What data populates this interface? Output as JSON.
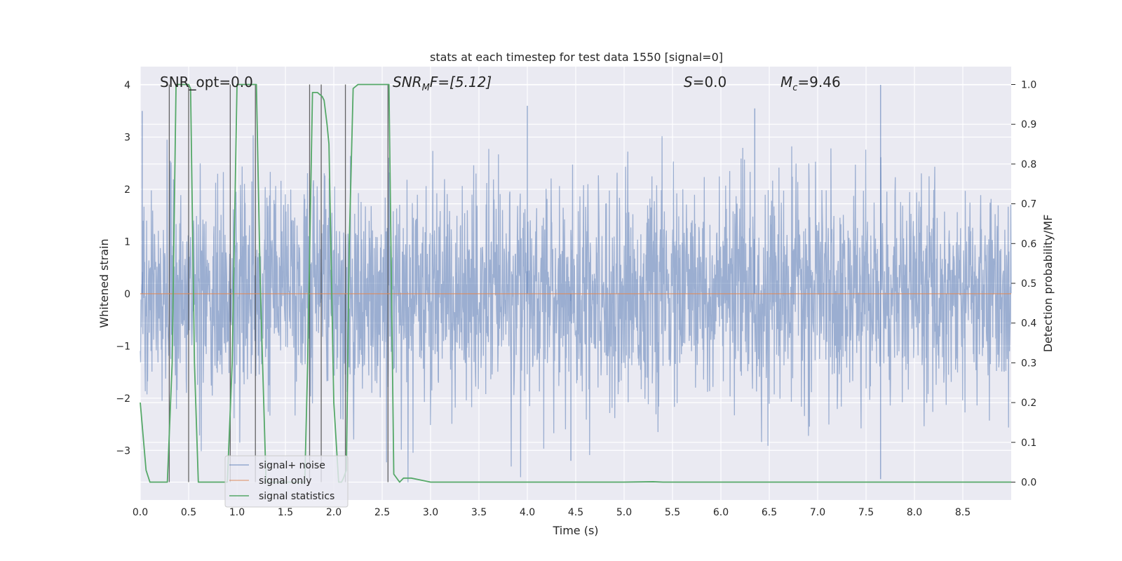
{
  "chart_data": {
    "type": "line",
    "title": "stats at each timestep for test data 1550 [signal=0]",
    "xlabel": "Time (s)",
    "ylabel_left": "Whitened strain",
    "ylabel_right": "Detection probability/MF",
    "xlim": [
      0,
      9
    ],
    "ylim_left": [
      -3.95,
      4.35
    ],
    "ylim_right": [
      -0.045,
      1.045
    ],
    "x_ticks": [
      "0.0",
      "0.5",
      "1.0",
      "1.5",
      "2.0",
      "2.5",
      "3.0",
      "3.5",
      "4.0",
      "4.5",
      "5.0",
      "5.5",
      "6.0",
      "6.5",
      "7.0",
      "7.5",
      "8.0",
      "8.5"
    ],
    "y_ticks_left": [
      "4",
      "3",
      "2",
      "1",
      "0",
      "−1",
      "−2",
      "−3"
    ],
    "y_ticks_right": [
      "1.0",
      "0.9",
      "0.8",
      "0.7",
      "0.6",
      "0.5",
      "0.4",
      "0.3",
      "0.2",
      "0.1",
      "0.0"
    ],
    "grid": true,
    "legend_position": "lower-left",
    "annotations": {
      "snr_opt": "SNR_opt=0.0",
      "snr_mf_main": "SNR",
      "snr_mf_sub": "M",
      "snr_mf_rest": "F=[5.12]",
      "s_main": "S",
      "s_rest": "=0.0",
      "mc_main": "M",
      "mc_sub": "c",
      "mc_rest": "=9.46"
    },
    "series": [
      {
        "name": "signal+ noise",
        "color": "#4c72b0",
        "axis": "left",
        "description_values": "whitened noise, approx N(0,1), range about -3.8 to 4.0",
        "notable_peaks": [
          [
            0.02,
            3.5
          ],
          [
            4.0,
            3.6
          ],
          [
            6.35,
            3.55
          ],
          [
            7.65,
            4.0
          ],
          [
            7.65,
            -3.55
          ],
          [
            4.45,
            -3.2
          ]
        ]
      },
      {
        "name": "signal only",
        "color": "#dd8452",
        "axis": "left",
        "x": [
          0,
          9
        ],
        "y": [
          0,
          0
        ]
      },
      {
        "name": "signal statistics",
        "color": "#55a868",
        "axis": "right",
        "x": [
          0,
          0.06,
          0.1,
          0.25,
          0.28,
          0.33,
          0.37,
          0.4,
          0.45,
          0.5,
          0.52,
          0.56,
          0.6,
          0.75,
          0.9,
          0.95,
          1.0,
          1.2,
          1.24,
          1.3,
          1.6,
          1.7,
          1.73,
          1.78,
          1.83,
          1.88,
          1.9,
          1.93,
          1.95,
          2.0,
          2.05,
          2.08,
          2.1,
          2.13,
          2.16,
          2.2,
          2.25,
          2.3,
          2.5,
          2.57,
          2.62,
          2.68,
          2.72,
          2.8,
          2.9,
          3.0,
          5.0,
          5.3,
          5.4,
          9.0
        ],
        "y": [
          0.2,
          0.03,
          0.0,
          0.0,
          0.0,
          0.3,
          1.0,
          1.0,
          1.0,
          1.0,
          0.99,
          0.3,
          0.0,
          0.0,
          0.0,
          0.3,
          1.0,
          1.0,
          0.5,
          0.0,
          0.0,
          0.0,
          0.3,
          0.98,
          0.98,
          0.97,
          0.96,
          0.9,
          0.85,
          0.2,
          0.0,
          0.0,
          0.01,
          0.03,
          0.6,
          0.99,
          1.0,
          1.0,
          1.0,
          1.0,
          0.02,
          0.0,
          0.01,
          0.01,
          0.005,
          0.0,
          0.0,
          0.001,
          0.0,
          0.0
        ]
      }
    ],
    "vertical_markers_x": [
      0.3,
      0.5,
      0.93,
      1.19,
      1.75,
      1.87,
      2.12,
      2.56
    ]
  }
}
